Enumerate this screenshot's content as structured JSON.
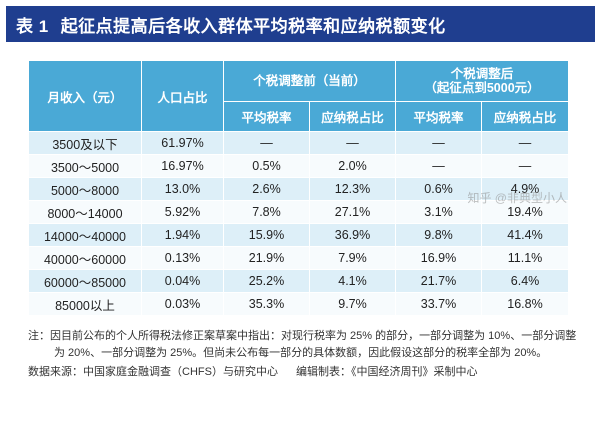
{
  "title": {
    "label": "表 1",
    "text": "起征点提高后各收入群体平均税率和应纳税额变化"
  },
  "table": {
    "headers": {
      "income": "月收入（元）",
      "population": "人口占比",
      "before_group": "个税调整前（当前）",
      "after_group_line1": "个税调整后",
      "after_group_line2": "（起征点到5000元）",
      "avg_rate": "平均税率",
      "tax_share": "应纳税占比"
    },
    "rows": [
      {
        "income": "3500及以下",
        "population": "61.97%",
        "before_rate": "—",
        "before_share": "—",
        "after_rate": "—",
        "after_share": "—"
      },
      {
        "income": "3500～5000",
        "population": "16.97%",
        "before_rate": "0.5%",
        "before_share": "2.0%",
        "after_rate": "—",
        "after_share": "—"
      },
      {
        "income": "5000～8000",
        "population": "13.0%",
        "before_rate": "2.6%",
        "before_share": "12.3%",
        "after_rate": "0.6%",
        "after_share": "4.9%"
      },
      {
        "income": "8000～14000",
        "population": "5.92%",
        "before_rate": "7.8%",
        "before_share": "27.1%",
        "after_rate": "3.1%",
        "after_share": "19.4%"
      },
      {
        "income": "14000～40000",
        "population": "1.94%",
        "before_rate": "15.9%",
        "before_share": "36.9%",
        "after_rate": "9.8%",
        "after_share": "41.4%"
      },
      {
        "income": "40000～60000",
        "population": "0.13%",
        "before_rate": "21.9%",
        "before_share": "7.9%",
        "after_rate": "16.9%",
        "after_share": "11.1%"
      },
      {
        "income": "60000～85000",
        "population": "0.04%",
        "before_rate": "25.2%",
        "before_share": "4.1%",
        "after_rate": "21.7%",
        "after_share": "6.4%"
      },
      {
        "income": "85000以上",
        "population": "0.03%",
        "before_rate": "35.3%",
        "before_share": "9.7%",
        "after_rate": "33.7%",
        "after_share": "16.8%"
      }
    ]
  },
  "notes": {
    "note": "注：因目前公布的个人所得税法修正案草案中指出：对现行税率为 25% 的部分，一部分调整为 10%、一部分调整为 20%、一部分调整为 25%。但尚未公布每一部分的具体数额，因此假设这部分的税率全部为 20%。",
    "source": "数据来源：中国家庭金融调查（CHFS）与研究中心",
    "editor": "编辑制表：《中国经济周刊》采制中心"
  },
  "watermark": {
    "text": "知乎 @非典型小人"
  },
  "colors": {
    "title_bg": "#1f3e8f",
    "header_bg": "#4aa9d6",
    "row_odd": "#ddeff8",
    "row_even": "#f7fbfd"
  }
}
